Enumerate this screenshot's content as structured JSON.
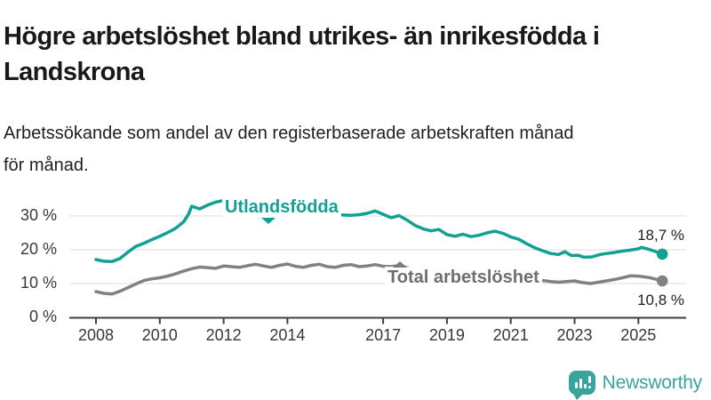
{
  "header": {
    "title": "Högre arbetslöshet bland utrikes- än inrikesfödda i Landskrona",
    "title_lines": [
      "Högre arbetslöshet bland utrikes- än inrikesfödda i",
      "Landskrona"
    ],
    "subtitle": "Arbetssökande som andel av den registerbaserade arbetskraften månad för månad.",
    "subtitle_lines": [
      "Arbetssökande som andel av den registerbaserade arbetskraften månad",
      "för månad."
    ]
  },
  "colors": {
    "teal": "#11a192",
    "gray_line": "#818181",
    "gray_label": "#6e6e73",
    "axis": "#3f3f3f",
    "gridline": "#dcdcdc"
  },
  "chart_data": {
    "type": "line",
    "title": "Högre arbetslöshet bland utrikes- än inrikesfödda i Landskrona",
    "subtitle": "Arbetssökande som andel av den registerbaserade arbetskraften månad för månad.",
    "xlabel": "",
    "ylabel": "",
    "ylim": [
      0,
      37
    ],
    "xlim": [
      2007.2,
      2026.4
    ],
    "grid": "horizontal",
    "legend_position": "inline-labels-on-lines",
    "y_ticks": [
      {
        "value": 0,
        "label": "0 %"
      },
      {
        "value": 10,
        "label": "10 %"
      },
      {
        "value": 20,
        "label": "20 %"
      },
      {
        "value": 30,
        "label": "30 %"
      }
    ],
    "x_ticks": [
      {
        "value": 2008,
        "label": "2008"
      },
      {
        "value": 2010,
        "label": "2010"
      },
      {
        "value": 2012,
        "label": "2012"
      },
      {
        "value": 2014,
        "label": "2014"
      },
      {
        "value": 2017,
        "label": "2017"
      },
      {
        "value": 2019,
        "label": "2019"
      },
      {
        "value": 2021,
        "label": "2021"
      },
      {
        "value": 2023,
        "label": "2023"
      },
      {
        "value": 2025,
        "label": "2025"
      }
    ],
    "series": [
      {
        "name": "Utlandsfödda",
        "color": "#11a192",
        "end_label": "18,7 %",
        "end_value": 18.7,
        "x": [
          2008,
          2008.25,
          2008.5,
          2008.75,
          2009,
          2009.25,
          2009.5,
          2009.75,
          2010,
          2010.25,
          2010.5,
          2010.75,
          2010.9,
          2011,
          2011.25,
          2011.5,
          2011.75,
          2012,
          2012.25,
          2012.5,
          2012.75,
          2013,
          2013.25,
          2013.5,
          2013.75,
          2014,
          2014.25,
          2014.5,
          2014.75,
          2015,
          2015.25,
          2015.5,
          2015.75,
          2016,
          2016.25,
          2016.5,
          2016.75,
          2017,
          2017.25,
          2017.5,
          2017.75,
          2018,
          2018.25,
          2018.5,
          2018.75,
          2019,
          2019.25,
          2019.5,
          2019.75,
          2020,
          2020.25,
          2020.5,
          2020.75,
          2021,
          2021.25,
          2021.5,
          2021.75,
          2022,
          2022.25,
          2022.5,
          2022.7,
          2022.9,
          2023.1,
          2023.3,
          2023.55,
          2023.8,
          2024,
          2024.25,
          2024.5,
          2024.75,
          2025,
          2025.1,
          2025.3,
          2025.5,
          2025.75
        ],
        "y": [
          17.1,
          16.6,
          16.5,
          17.4,
          19.3,
          21,
          21.9,
          23,
          24,
          25.1,
          26.4,
          28.3,
          30.5,
          32.9,
          32.1,
          33.2,
          34.1,
          34.6,
          33.7,
          33,
          33.9,
          33.6,
          33.1,
          32.7,
          32.3,
          32.5,
          31.9,
          31.4,
          31.1,
          31.3,
          30.8,
          30.5,
          30.3,
          30.2,
          30.4,
          30.8,
          31.5,
          30.5,
          29.5,
          30.1,
          28.8,
          27.2,
          26.2,
          25.6,
          26,
          24.5,
          24,
          24.6,
          23.9,
          24.3,
          25,
          25.5,
          24.9,
          23.8,
          23.1,
          21.8,
          20.6,
          19.7,
          18.9,
          18.6,
          19.4,
          18.3,
          18.4,
          17.8,
          17.9,
          18.6,
          18.9,
          19.2,
          19.6,
          19.9,
          20.3,
          20.7,
          20.2,
          19.6,
          18.7
        ]
      },
      {
        "name": "Total arbetslöshet",
        "color": "#818181",
        "end_label": "10,8 %",
        "end_value": 10.8,
        "x": [
          2008,
          2008.25,
          2008.5,
          2008.75,
          2009,
          2009.25,
          2009.5,
          2009.75,
          2010,
          2010.25,
          2010.5,
          2010.75,
          2011,
          2011.25,
          2011.5,
          2011.75,
          2012,
          2012.25,
          2012.5,
          2012.75,
          2013,
          2013.25,
          2013.5,
          2013.75,
          2014,
          2014.25,
          2014.5,
          2014.75,
          2015,
          2015.25,
          2015.5,
          2015.75,
          2016,
          2016.25,
          2016.5,
          2016.75,
          2017,
          2017.25,
          2017.5,
          2017.75,
          2018,
          2018.25,
          2018.5,
          2018.75,
          2019,
          2019.25,
          2019.5,
          2019.75,
          2020,
          2020.25,
          2020.5,
          2020.75,
          2021,
          2021.25,
          2021.5,
          2021.75,
          2022,
          2022.25,
          2022.5,
          2022.75,
          2023,
          2023.25,
          2023.5,
          2023.75,
          2024,
          2024.25,
          2024.5,
          2024.75,
          2025,
          2025.25,
          2025.42,
          2025.58,
          2025.75
        ],
        "y": [
          7.6,
          7.1,
          6.9,
          7.7,
          8.8,
          9.9,
          10.9,
          11.4,
          11.7,
          12.2,
          12.9,
          13.7,
          14.4,
          14.9,
          14.7,
          14.5,
          15.2,
          15,
          14.8,
          15.3,
          15.7,
          15.2,
          14.8,
          15.4,
          15.8,
          15.1,
          14.8,
          15.4,
          15.7,
          15,
          14.8,
          15.4,
          15.6,
          15,
          15.2,
          15.6,
          15.1,
          15,
          15.3,
          14.7,
          14.2,
          13.8,
          13.5,
          13.3,
          13,
          12.9,
          13,
          12.8,
          13,
          13.6,
          13.8,
          13.4,
          12.9,
          12.4,
          11.8,
          11.3,
          10.9,
          10.6,
          10.4,
          10.6,
          10.8,
          10.3,
          10,
          10.4,
          10.8,
          11.2,
          11.7,
          12.3,
          12.2,
          11.9,
          11.6,
          11.2,
          10.8
        ]
      }
    ]
  },
  "footer": {
    "brand": "Newsworthy"
  }
}
